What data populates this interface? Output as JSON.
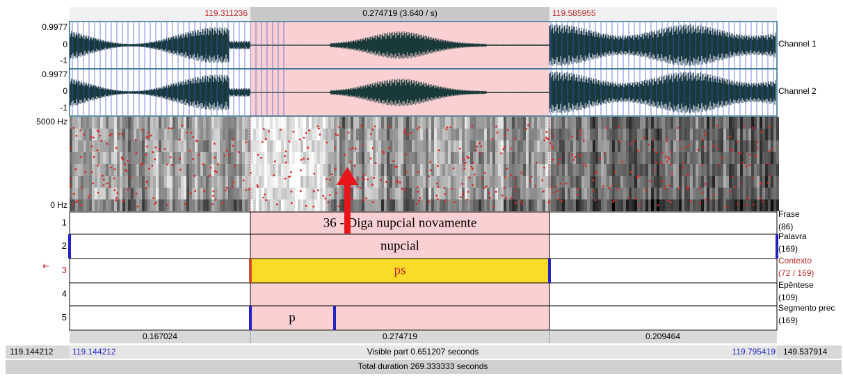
{
  "selection": {
    "start": "119.311236",
    "duration": "0.274719 (3.640 / s)",
    "end": "119.585955"
  },
  "channels": [
    {
      "name": "Channel 1",
      "max": "0.9977",
      "zero": "0",
      "min": "-1"
    },
    {
      "name": "Channel 2",
      "max": "0.9977",
      "zero": "0",
      "min": "-1"
    }
  ],
  "spectrogram": {
    "max": "5000 Hz",
    "min": "0 Hz"
  },
  "tiers": [
    {
      "number": "1",
      "name": "Frase",
      "count": "(86)",
      "interval": "36 - Diga nupcial novamente"
    },
    {
      "number": "2",
      "name": "Palavra",
      "count": "(169)",
      "interval": "nupcial"
    },
    {
      "number": "3",
      "name": "Contexto",
      "count": "(72 / 169)",
      "interval": "ps"
    },
    {
      "number": "4",
      "name": "Epêntese",
      "count": "(109)"
    },
    {
      "number": "5",
      "name": "Segmento prec",
      "count": "(169)",
      "interval": "p"
    }
  ],
  "durations": [
    "0.167024",
    "0.274719",
    "0.209464"
  ],
  "window": {
    "left_outer": "119.144212",
    "left": "119.144212",
    "visible": "Visible part 0.651207 seconds",
    "right": "119.795419",
    "right_outer": "149.537914"
  },
  "total": "Total duration 269.333333 seconds"
}
